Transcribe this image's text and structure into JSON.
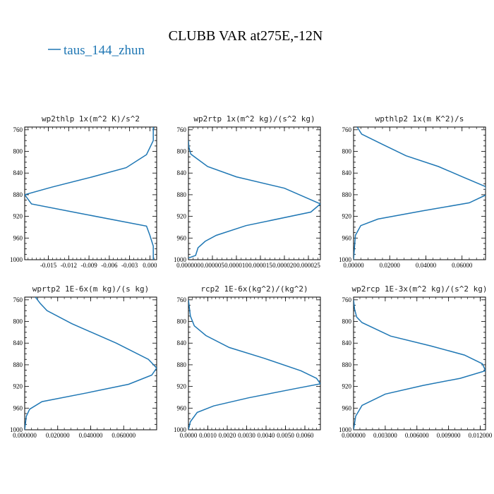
{
  "figure": {
    "title": "CLUBB VAR at275E,-12N",
    "legend_label": "taus_144_zhun",
    "line_color": "#1f77b4"
  },
  "chart_data": [
    {
      "type": "line",
      "title": "wp2thlp  1x(m^2 K)/s^2",
      "xlim": [
        -0.0185,
        0.001
      ],
      "ylim": [
        1000,
        755
      ],
      "y_ticks": [
        "760",
        "800",
        "840",
        "880",
        "920",
        "960",
        "1000"
      ],
      "x_ticks": [
        {
          "v": -0.015,
          "label": "-0.015"
        },
        {
          "v": -0.012,
          "label": "-0.012"
        },
        {
          "v": -0.009,
          "label": "-0.009"
        },
        {
          "v": -0.006,
          "label": "-0.006"
        },
        {
          "v": -0.003,
          "label": "-0.003"
        },
        {
          "v": 0.0,
          "label": "0.000"
        }
      ],
      "series": [
        {
          "x": [
            0.0005,
            0.0005,
            0.0005,
            -0.0005,
            -0.0035,
            -0.0085,
            -0.0145,
            -0.0185,
            -0.0175,
            -0.0105,
            -0.0005,
            0.0,
            0.0005,
            0.0005
          ],
          "y": [
            755,
            765,
            780,
            806,
            830,
            847,
            866,
            880,
            897,
            914,
            938,
            955,
            975,
            1000
          ]
        }
      ]
    },
    {
      "type": "line",
      "title": "wp2rtp  1x(m^2 kg)/(s^2 kg)",
      "xlim": [
        0.0,
        2.75e-05
      ],
      "ylim": [
        1000,
        755
      ],
      "y_ticks": [
        "760",
        "800",
        "840",
        "880",
        "920",
        "960",
        "1000"
      ],
      "x_ticks": [
        {
          "v": 0.0,
          "label": "0.000000"
        },
        {
          "v": 5e-06,
          "label": "0.000005"
        },
        {
          "v": 1e-05,
          "label": "0.000010"
        },
        {
          "v": 1.5e-05,
          "label": "0.000015"
        },
        {
          "v": 2e-05,
          "label": "0.000020"
        },
        {
          "v": 2.5e-05,
          "label": "0.000025"
        }
      ],
      "series": [
        {
          "x": [
            0.0,
            1e-07,
            5e-07,
            4e-06,
            1e-05,
            2e-05,
            2.75e-05,
            2.55e-05,
            1.2e-05,
            5.8e-06,
            3.5e-06,
            2e-06,
            1.5e-06,
            0.0
          ],
          "y": [
            780,
            792,
            805,
            828,
            847,
            868,
            897,
            912,
            937,
            955,
            966,
            978,
            992,
            997
          ]
        }
      ]
    },
    {
      "type": "line",
      "title": "wpthlp2  1x(m K^2)/s",
      "xlim": [
        0.0,
        0.073
      ],
      "ylim": [
        1000,
        755
      ],
      "y_ticks": [
        "760",
        "800",
        "840",
        "880",
        "920",
        "960",
        "1000"
      ],
      "x_ticks": [
        {
          "v": 0.0,
          "label": "0.00000"
        },
        {
          "v": 0.02,
          "label": "0.02000"
        },
        {
          "v": 0.04,
          "label": "0.04000"
        },
        {
          "v": 0.06,
          "label": "0.06000"
        }
      ],
      "series": [
        {
          "x": [
            0.002,
            0.0045,
            0.016,
            0.029,
            0.047,
            0.061,
            0.073,
            0.0735,
            0.064,
            0.038,
            0.0135,
            0.004,
            0.001,
            0.0
          ],
          "y": [
            755,
            768,
            787,
            808,
            828,
            848,
            865,
            880,
            895,
            910,
            925,
            937,
            955,
            1000
          ]
        }
      ]
    },
    {
      "type": "line",
      "title": "wprtp2  1E-6x(m kg)/(s kg)",
      "xlim": [
        0.0,
        0.08
      ],
      "ylim": [
        1000,
        755
      ],
      "y_ticks": [
        "760",
        "800",
        "840",
        "880",
        "920",
        "960",
        "1000"
      ],
      "x_ticks": [
        {
          "v": 0.0,
          "label": "0.000000"
        },
        {
          "v": 0.02,
          "label": "0.020000"
        },
        {
          "v": 0.04,
          "label": "0.040000"
        },
        {
          "v": 0.06,
          "label": "0.060000"
        }
      ],
      "series": [
        {
          "x": [
            0.0065,
            0.0095,
            0.0135,
            0.0285,
            0.0555,
            0.075,
            0.08,
            0.077,
            0.063,
            0.0375,
            0.0105,
            0.003,
            0.001,
            0.0
          ],
          "y": [
            755,
            767,
            780,
            804,
            840,
            870,
            886,
            899,
            916,
            932,
            948,
            962,
            975,
            1000
          ]
        }
      ]
    },
    {
      "type": "line",
      "title": "rcp2  1E-6x(kg^2)/(kg^2)",
      "xlim": [
        0.0,
        0.0068
      ],
      "ylim": [
        1000,
        755
      ],
      "y_ticks": [
        "760",
        "800",
        "840",
        "880",
        "920",
        "960",
        "1000"
      ],
      "x_ticks": [
        {
          "v": 0.0,
          "label": "0.0000"
        },
        {
          "v": 0.001,
          "label": "0.0010"
        },
        {
          "v": 0.002,
          "label": "0.0020"
        },
        {
          "v": 0.003,
          "label": "0.0030"
        },
        {
          "v": 0.004,
          "label": "0.0040"
        },
        {
          "v": 0.005,
          "label": "0.0050"
        },
        {
          "v": 0.006,
          "label": "0.0060"
        }
      ],
      "series": [
        {
          "x": [
            0.0,
            0.0001,
            0.0003,
            0.0009,
            0.0021,
            0.0039,
            0.0058,
            0.0066,
            0.0068,
            0.0055,
            0.0031,
            0.0013,
            0.00045,
            0.0001,
            0.0
          ],
          "y": [
            760,
            790,
            808,
            826,
            848,
            868,
            891,
            905,
            915,
            924,
            941,
            956,
            968,
            985,
            1000
          ]
        }
      ]
    },
    {
      "type": "line",
      "title": "wp2rcp  1E-3x(m^2 kg)/(s^2 kg)",
      "xlim": [
        0.0,
        0.0125
      ],
      "ylim": [
        1000,
        755
      ],
      "y_ticks": [
        "760",
        "800",
        "840",
        "880",
        "920",
        "960",
        "1000"
      ],
      "x_ticks": [
        {
          "v": 0.0,
          "label": "0.000000"
        },
        {
          "v": 0.003,
          "label": "0.003000"
        },
        {
          "v": 0.006,
          "label": "0.006000"
        },
        {
          "v": 0.009,
          "label": "0.009000"
        },
        {
          "v": 0.012,
          "label": "0.012000"
        }
      ],
      "series": [
        {
          "x": [
            0.0,
            0.0001,
            0.0003,
            0.0008,
            0.0035,
            0.0073,
            0.0105,
            0.0122,
            0.0125,
            0.0101,
            0.0066,
            0.003,
            0.0008,
            0.0002,
            0.0
          ],
          "y": [
            760,
            778,
            792,
            802,
            827,
            845,
            862,
            878,
            891,
            905,
            918,
            934,
            955,
            975,
            1000
          ]
        }
      ]
    }
  ]
}
